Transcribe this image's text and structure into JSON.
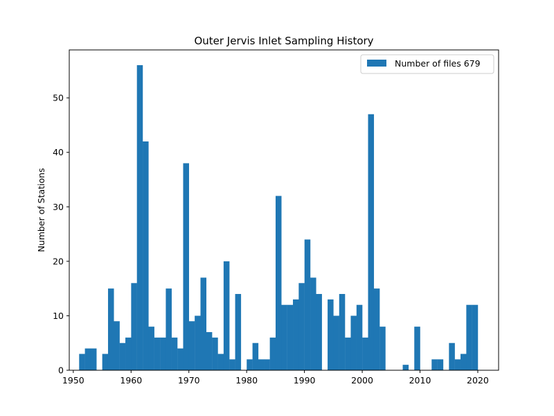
{
  "chart_data": {
    "type": "bar",
    "title": "Outer Jervis Inlet Sampling History",
    "xlabel": "",
    "ylabel": "Number of Stations",
    "xlim": [
      1949.3,
      2023.6
    ],
    "ylim": [
      0,
      58.8
    ],
    "x_ticks": [
      1950,
      1960,
      1970,
      1980,
      1990,
      2000,
      2010,
      2020
    ],
    "y_ticks": [
      0,
      10,
      20,
      30,
      40,
      50
    ],
    "grid": false,
    "legend_position": "top-right",
    "bar_color": "#1f77b4",
    "bin_width": 0.98,
    "series": [
      {
        "name": "Number of files 679",
        "x": [
          1951.5,
          1952.5,
          1953.5,
          1955.5,
          1956.5,
          1957.5,
          1958.5,
          1959.5,
          1960.5,
          1961.5,
          1962.5,
          1963.5,
          1964.5,
          1965.5,
          1966.5,
          1967.5,
          1968.5,
          1969.5,
          1970.5,
          1971.5,
          1972.5,
          1973.5,
          1974.5,
          1975.5,
          1976.5,
          1977.5,
          1978.5,
          1980.5,
          1981.5,
          1982.5,
          1983.5,
          1984.5,
          1985.5,
          1986.5,
          1987.5,
          1988.5,
          1989.5,
          1990.5,
          1991.5,
          1992.5,
          1994.5,
          1995.5,
          1996.5,
          1997.5,
          1998.5,
          1999.5,
          2000.5,
          2001.5,
          2002.5,
          2003.5,
          2007.5,
          2009.5,
          2012.5,
          2013.5,
          2015.5,
          2016.5,
          2017.5,
          2018.5,
          2019.5
        ],
        "values": [
          3,
          4,
          4,
          3,
          15,
          9,
          5,
          6,
          16,
          56,
          42,
          8,
          6,
          6,
          15,
          6,
          4,
          38,
          9,
          10,
          17,
          7,
          6,
          3,
          20,
          2,
          14,
          2,
          5,
          2,
          2,
          6,
          32,
          12,
          12,
          13,
          16,
          24,
          17,
          14,
          13,
          10,
          14,
          6,
          10,
          12,
          6,
          47,
          15,
          8,
          1,
          8,
          2,
          2,
          5,
          2,
          3,
          12,
          12
        ]
      }
    ]
  }
}
